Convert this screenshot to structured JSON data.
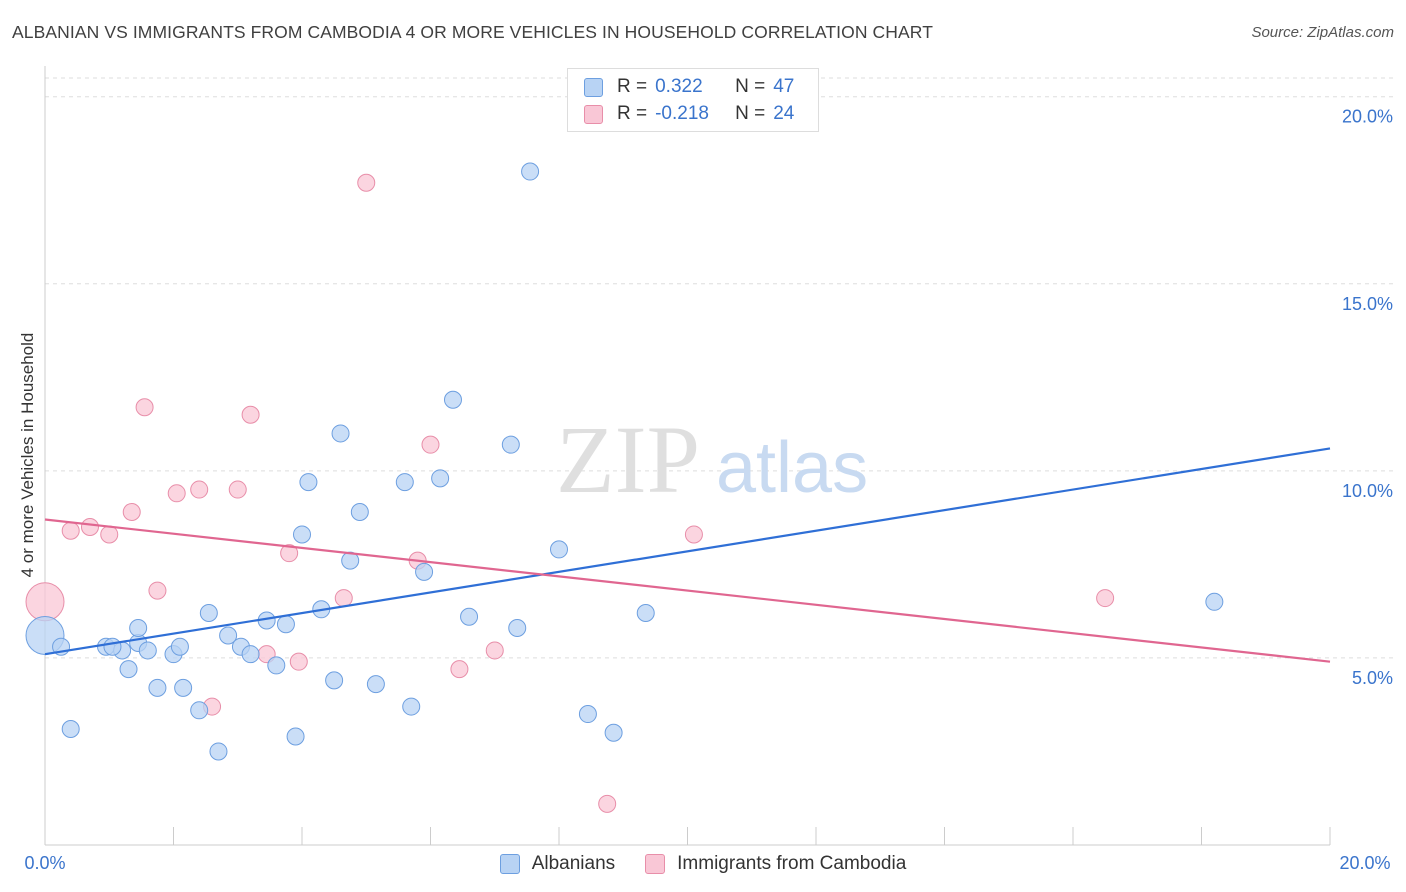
{
  "header": {
    "title": "ALBANIAN VS IMMIGRANTS FROM CAMBODIA 4 OR MORE VEHICLES IN HOUSEHOLD CORRELATION CHART",
    "source": "Source: ZipAtlas.com"
  },
  "watermark": {
    "zip": "ZIP",
    "atlas": "atlas"
  },
  "legend": {
    "rows": [
      {
        "r_label": "R =",
        "r_value": "0.322",
        "n_label": "N =",
        "n_value": "47"
      },
      {
        "r_label": "R =",
        "r_value": "-0.218",
        "n_label": "N =",
        "n_value": "24"
      }
    ]
  },
  "bottom_legend": {
    "series1": "Albanians",
    "series2": "Immigrants from Cambodia"
  },
  "colors": {
    "blue_fill": "#b8d3f4",
    "blue_stroke": "#6d9fe0",
    "blue_line": "#2f6fd6",
    "pink_fill": "#f9c7d6",
    "pink_stroke": "#e88ea9",
    "pink_line": "#e06690",
    "tick_text": "#3a74cc",
    "grid": "#dddddd"
  },
  "chart_data": {
    "type": "scatter",
    "title": "ALBANIAN VS IMMIGRANTS FROM CAMBODIA 4 OR MORE VEHICLES IN HOUSEHOLD CORRELATION CHART",
    "xlabel": "",
    "ylabel": "4 or more Vehicles in Household",
    "xlim": [
      0,
      20
    ],
    "ylim": [
      0,
      20.5
    ],
    "x_tick_labels": [
      "0.0%",
      "20.0%"
    ],
    "y_ticks": [
      5,
      10,
      15,
      20
    ],
    "y_tick_labels": [
      "5.0%",
      "10.0%",
      "15.0%",
      "20.0%"
    ],
    "grid": true,
    "legend_position": "top-center",
    "series": [
      {
        "name": "Albanians",
        "color": "#b8d3f4",
        "R": 0.322,
        "N": 47,
        "trend": {
          "x": [
            0,
            20
          ],
          "y": [
            5.1,
            10.6
          ]
        },
        "points": [
          {
            "x": 0.0,
            "y": 5.6,
            "big": true
          },
          {
            "x": 0.25,
            "y": 5.3
          },
          {
            "x": 0.4,
            "y": 3.1
          },
          {
            "x": 0.95,
            "y": 5.3
          },
          {
            "x": 1.2,
            "y": 5.2
          },
          {
            "x": 1.45,
            "y": 5.4
          },
          {
            "x": 1.05,
            "y": 5.3
          },
          {
            "x": 1.45,
            "y": 5.8
          },
          {
            "x": 1.6,
            "y": 5.2
          },
          {
            "x": 1.3,
            "y": 4.7
          },
          {
            "x": 2.0,
            "y": 5.1
          },
          {
            "x": 2.1,
            "y": 5.3
          },
          {
            "x": 1.75,
            "y": 4.2
          },
          {
            "x": 2.15,
            "y": 4.2
          },
          {
            "x": 2.4,
            "y": 3.6
          },
          {
            "x": 2.55,
            "y": 6.2
          },
          {
            "x": 2.85,
            "y": 5.6
          },
          {
            "x": 3.05,
            "y": 5.3
          },
          {
            "x": 3.2,
            "y": 5.1
          },
          {
            "x": 3.45,
            "y": 6.0
          },
          {
            "x": 3.75,
            "y": 5.9
          },
          {
            "x": 3.6,
            "y": 4.8
          },
          {
            "x": 2.7,
            "y": 2.5
          },
          {
            "x": 3.9,
            "y": 2.9
          },
          {
            "x": 4.0,
            "y": 8.3
          },
          {
            "x": 4.1,
            "y": 9.7
          },
          {
            "x": 4.3,
            "y": 6.3
          },
          {
            "x": 4.5,
            "y": 4.4
          },
          {
            "x": 4.6,
            "y": 11.0
          },
          {
            "x": 4.75,
            "y": 7.6
          },
          {
            "x": 4.9,
            "y": 8.9
          },
          {
            "x": 5.15,
            "y": 4.3
          },
          {
            "x": 5.6,
            "y": 9.7
          },
          {
            "x": 5.7,
            "y": 3.7
          },
          {
            "x": 5.9,
            "y": 7.3
          },
          {
            "x": 6.15,
            "y": 9.8
          },
          {
            "x": 6.35,
            "y": 11.9
          },
          {
            "x": 6.6,
            "y": 6.1
          },
          {
            "x": 7.25,
            "y": 10.7
          },
          {
            "x": 7.35,
            "y": 5.8
          },
          {
            "x": 7.55,
            "y": 18.0
          },
          {
            "x": 8.0,
            "y": 7.9
          },
          {
            "x": 8.45,
            "y": 3.5
          },
          {
            "x": 8.85,
            "y": 3.0
          },
          {
            "x": 9.35,
            "y": 6.2
          },
          {
            "x": 18.2,
            "y": 6.5
          }
        ]
      },
      {
        "name": "Immigrants from Cambodia",
        "color": "#f9c7d6",
        "R": -0.218,
        "N": 24,
        "trend": {
          "x": [
            0,
            20
          ],
          "y": [
            8.7,
            4.9
          ]
        },
        "points": [
          {
            "x": 0.0,
            "y": 6.5,
            "big": true
          },
          {
            "x": 0.4,
            "y": 8.4
          },
          {
            "x": 0.7,
            "y": 8.5
          },
          {
            "x": 1.0,
            "y": 8.3
          },
          {
            "x": 1.35,
            "y": 8.9
          },
          {
            "x": 1.55,
            "y": 11.7
          },
          {
            "x": 1.75,
            "y": 6.8
          },
          {
            "x": 2.05,
            "y": 9.4
          },
          {
            "x": 2.4,
            "y": 9.5
          },
          {
            "x": 2.6,
            "y": 3.7
          },
          {
            "x": 3.0,
            "y": 9.5
          },
          {
            "x": 3.2,
            "y": 11.5
          },
          {
            "x": 3.45,
            "y": 5.1
          },
          {
            "x": 3.8,
            "y": 7.8
          },
          {
            "x": 3.95,
            "y": 4.9
          },
          {
            "x": 4.65,
            "y": 6.6
          },
          {
            "x": 5.0,
            "y": 17.7
          },
          {
            "x": 5.8,
            "y": 7.6
          },
          {
            "x": 6.0,
            "y": 10.7
          },
          {
            "x": 6.45,
            "y": 4.7
          },
          {
            "x": 7.0,
            "y": 5.2
          },
          {
            "x": 8.75,
            "y": 1.1
          },
          {
            "x": 10.1,
            "y": 8.3
          },
          {
            "x": 16.5,
            "y": 6.6
          }
        ]
      }
    ]
  }
}
